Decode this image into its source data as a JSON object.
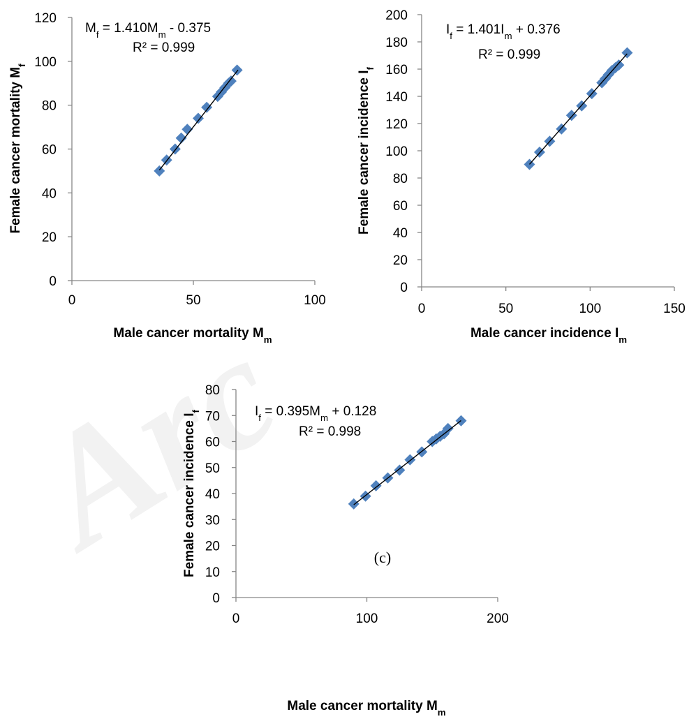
{
  "watermark": "Arc",
  "chart_data": [
    {
      "id": "a",
      "type": "scatter",
      "xlabel": {
        "main": "Male cancer mortality M",
        "sub": "m"
      },
      "ylabel": {
        "main": "Female cancer mortality M",
        "sub": "f"
      },
      "xlim": [
        0,
        100
      ],
      "ylim": [
        0,
        120
      ],
      "xticks": [
        0,
        50,
        100
      ],
      "yticks": [
        0,
        20,
        40,
        60,
        80,
        100,
        120
      ],
      "equation": {
        "line1": [
          {
            "t": "M"
          },
          {
            "t": "f",
            "sub": true
          },
          {
            "t": "  = 1.410M"
          },
          {
            "t": "m",
            "sub": true
          },
          {
            "t": " - 0.375"
          }
        ],
        "line2": [
          {
            "t": "R² = 0.999"
          }
        ]
      },
      "trendline": {
        "slope": 1.41,
        "intercept": -0.375,
        "x_range": [
          36,
          68.4
        ]
      },
      "points": [
        {
          "x": 36,
          "y": 50
        },
        {
          "x": 39,
          "y": 55
        },
        {
          "x": 42.5,
          "y": 60
        },
        {
          "x": 45,
          "y": 65
        },
        {
          "x": 47.5,
          "y": 69
        },
        {
          "x": 52,
          "y": 74
        },
        {
          "x": 55.5,
          "y": 79
        },
        {
          "x": 60,
          "y": 84
        },
        {
          "x": 61.5,
          "y": 86
        },
        {
          "x": 63,
          "y": 88
        },
        {
          "x": 64.5,
          "y": 90
        },
        {
          "x": 65.5,
          "y": 91
        },
        {
          "x": 68,
          "y": 96
        }
      ],
      "marker_color": "#4f81bd",
      "trend_color": "#000000"
    },
    {
      "id": "b",
      "type": "scatter",
      "xlabel": {
        "main": "Male cancer incidence I",
        "sub": "m"
      },
      "ylabel": {
        "main": "Female cancer incidence I",
        "sub": "f"
      },
      "xlim": [
        0,
        150
      ],
      "ylim": [
        0,
        200
      ],
      "xticks": [
        0,
        50,
        100,
        150
      ],
      "yticks": [
        0,
        20,
        40,
        60,
        80,
        100,
        120,
        140,
        160,
        180,
        200
      ],
      "equation": {
        "line1": [
          {
            "t": "I"
          },
          {
            "t": "f",
            "sub": true
          },
          {
            "t": "  = 1.401I"
          },
          {
            "t": "m",
            "sub": true
          },
          {
            "t": " + 0.376"
          }
        ],
        "line2": [
          {
            "t": "R² = 0.999"
          }
        ]
      },
      "trendline": {
        "slope": 1.401,
        "intercept": 0.376,
        "x_range": [
          64,
          122
        ]
      },
      "points": [
        {
          "x": 64,
          "y": 90
        },
        {
          "x": 70,
          "y": 99
        },
        {
          "x": 76,
          "y": 107
        },
        {
          "x": 83,
          "y": 116
        },
        {
          "x": 89,
          "y": 126
        },
        {
          "x": 95,
          "y": 133
        },
        {
          "x": 101,
          "y": 142
        },
        {
          "x": 107,
          "y": 150
        },
        {
          "x": 109,
          "y": 153
        },
        {
          "x": 111,
          "y": 156
        },
        {
          "x": 113,
          "y": 159
        },
        {
          "x": 115,
          "y": 161
        },
        {
          "x": 117,
          "y": 163
        },
        {
          "x": 122,
          "y": 172
        }
      ],
      "marker_color": "#4f81bd",
      "trend_color": "#000000"
    },
    {
      "id": "c",
      "type": "scatter",
      "xlabel": {
        "main": "Male cancer mortality M",
        "sub": "m"
      },
      "ylabel": {
        "main": "Female cancer incidence I",
        "sub": "f"
      },
      "xlim": [
        0,
        200
      ],
      "ylim": [
        0,
        80
      ],
      "xticks": [
        0,
        100,
        200
      ],
      "yticks": [
        0,
        10,
        20,
        30,
        40,
        50,
        60,
        70,
        80
      ],
      "equation": {
        "line1": [
          {
            "t": "I"
          },
          {
            "t": "f",
            "sub": true
          },
          {
            "t": "  = 0.395M"
          },
          {
            "t": "m",
            "sub": true
          },
          {
            "t": " + 0.128"
          }
        ],
        "line2": [
          {
            "t": "R² = 0.998"
          }
        ]
      },
      "panel_label": "(c)",
      "trendline": {
        "slope": 0.395,
        "intercept": 0.128,
        "x_range": [
          90,
          172
        ]
      },
      "points": [
        {
          "x": 90,
          "y": 36
        },
        {
          "x": 99,
          "y": 39
        },
        {
          "x": 107,
          "y": 43
        },
        {
          "x": 116,
          "y": 46
        },
        {
          "x": 125,
          "y": 49
        },
        {
          "x": 133,
          "y": 53
        },
        {
          "x": 142,
          "y": 56
        },
        {
          "x": 150,
          "y": 60
        },
        {
          "x": 153,
          "y": 61
        },
        {
          "x": 156,
          "y": 62
        },
        {
          "x": 159,
          "y": 63
        },
        {
          "x": 162,
          "y": 65
        },
        {
          "x": 172,
          "y": 68
        }
      ],
      "marker_color": "#4f81bd",
      "trend_color": "#000000"
    }
  ]
}
